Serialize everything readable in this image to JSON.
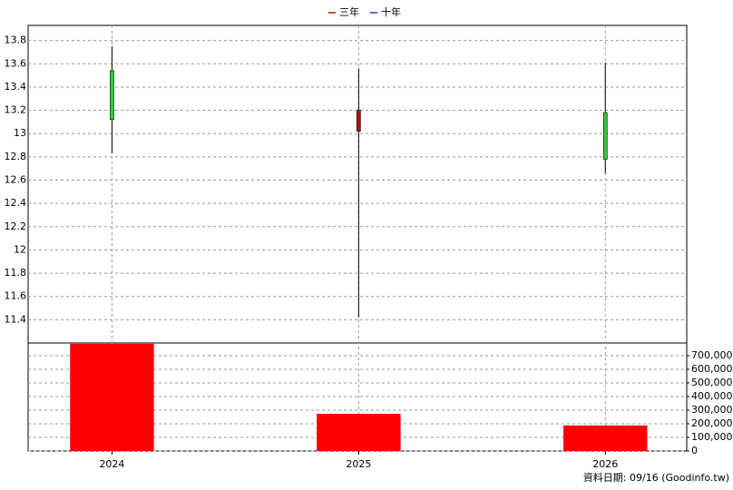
{
  "chart_data": [
    {
      "type": "candlestick",
      "legend": [
        {
          "name": "三年",
          "color": "#cc0000"
        },
        {
          "name": "十年",
          "color": "#6a1fc2"
        }
      ],
      "x": [
        2024,
        2025,
        2026
      ],
      "xlim": [
        2023.66,
        2026.33
      ],
      "xticks": [
        2024,
        2025,
        2026
      ],
      "open": [
        13.54,
        13.02,
        13.18
      ],
      "high": [
        13.75,
        13.56,
        13.61
      ],
      "low": [
        12.83,
        11.42,
        12.66
      ],
      "close": [
        13.12,
        13.2,
        12.78
      ],
      "up_color": "#cc0000",
      "down_color": "#33cc33",
      "ylim": [
        11.2,
        13.93
      ],
      "yticks": [
        11.4,
        11.6,
        11.8,
        12,
        12.2,
        12.4,
        12.6,
        12.8,
        13,
        13.2,
        13.4,
        13.6,
        13.8
      ],
      "grid": true
    },
    {
      "type": "bar",
      "x": [
        2024,
        2025,
        2026
      ],
      "values": [
        787000,
        273000,
        187000
      ],
      "color": "#ff0000",
      "ylim": [
        0,
        793000
      ],
      "yticks": [
        0,
        {
          "value": 100000,
          "label": "100,000"
        },
        {
          "value": 200000,
          "label": "200,000"
        },
        {
          "value": 300000,
          "label": "300,000"
        },
        {
          "value": 400000,
          "label": "400,000"
        },
        {
          "value": 500000,
          "label": "500,000"
        },
        {
          "value": 600000,
          "label": "600,000"
        },
        {
          "value": 700000,
          "label": "700,000"
        }
      ],
      "grid": true
    }
  ],
  "footer": "資料日期: 09/16  (Goodinfo.tw)"
}
